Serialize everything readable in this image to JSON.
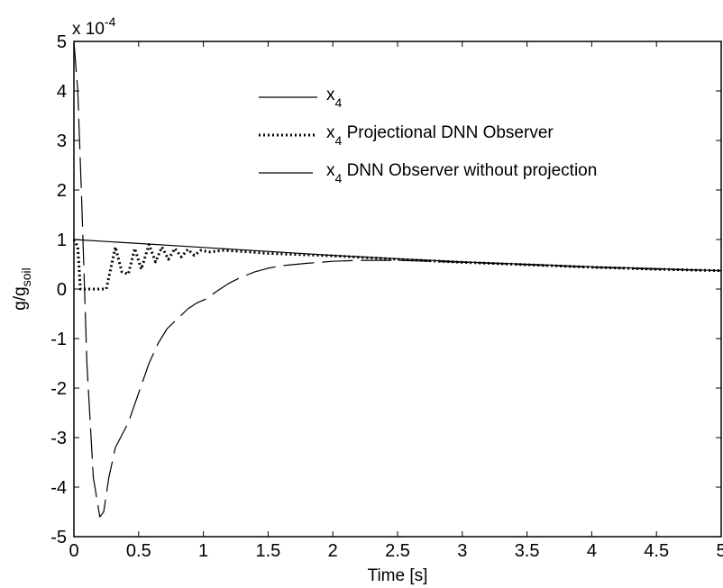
{
  "chart_data": {
    "type": "line",
    "title": "",
    "xlabel": "Time [s]",
    "ylabel_main": "g/g",
    "ylabel_sub": "soil",
    "xlim": [
      0,
      5
    ],
    "ylim": [
      -5,
      5
    ],
    "multiplier_base": "x 10",
    "multiplier_exp": "-4",
    "grid": false,
    "legend_position": "upper-middle",
    "xticks": [
      0,
      0.5,
      1,
      1.5,
      2,
      2.5,
      3,
      3.5,
      4,
      4.5,
      5
    ],
    "yticks": [
      -5,
      -4,
      -3,
      -2,
      -1,
      0,
      1,
      2,
      3,
      4,
      5
    ],
    "xtick_labels": [
      "0",
      "0.5",
      "1",
      "1.5",
      "2",
      "2.5",
      "3",
      "3.5",
      "4",
      "4.5",
      "5"
    ],
    "ytick_labels": [
      "-5",
      "-4",
      "-3",
      "-2",
      "-1",
      "0",
      "1",
      "2",
      "3",
      "4",
      "5"
    ],
    "series": [
      {
        "name": "x4",
        "label_main": "x",
        "label_sub": "4",
        "label_rest": "",
        "style": "solid",
        "x": [
          0,
          0.5,
          1,
          1.5,
          2,
          2.5,
          3,
          3.5,
          4,
          4.5,
          5
        ],
        "y": [
          1.0,
          0.92,
          0.84,
          0.76,
          0.68,
          0.61,
          0.55,
          0.5,
          0.45,
          0.41,
          0.37
        ]
      },
      {
        "name": "x4 Projectional DNN Observer",
        "label_main": "x",
        "label_sub": "4",
        "label_rest": " Projectional DNN Observer",
        "style": "dotted",
        "x": [
          0,
          0.03,
          0.05,
          0.25,
          0.32,
          0.37,
          0.42,
          0.47,
          0.52,
          0.58,
          0.63,
          0.68,
          0.73,
          0.78,
          0.83,
          0.88,
          0.93,
          0.98,
          1.05,
          1.15,
          1.3,
          1.5,
          2,
          2.5,
          3,
          3.5,
          4,
          4.5,
          5
        ],
        "y": [
          1.0,
          0.85,
          0.0,
          0.0,
          0.85,
          0.35,
          0.3,
          0.82,
          0.4,
          0.9,
          0.55,
          0.85,
          0.6,
          0.82,
          0.65,
          0.8,
          0.68,
          0.78,
          0.75,
          0.78,
          0.76,
          0.72,
          0.67,
          0.6,
          0.54,
          0.49,
          0.44,
          0.4,
          0.37
        ]
      },
      {
        "name": "x4 DNN Observer without projection",
        "label_main": "x",
        "label_sub": "4",
        "label_rest": " DNN Observer without projection",
        "style": "longdash",
        "x": [
          0,
          0.03,
          0.06,
          0.1,
          0.15,
          0.2,
          0.23,
          0.27,
          0.32,
          0.36,
          0.42,
          0.5,
          0.58,
          0.65,
          0.72,
          0.8,
          0.88,
          0.95,
          1.02,
          1.1,
          1.2,
          1.3,
          1.4,
          1.5,
          1.6,
          1.8,
          2.0,
          2.2,
          2.5,
          3,
          3.5,
          4,
          4.5,
          5
        ],
        "y": [
          5.0,
          4.0,
          1.8,
          -1.5,
          -3.8,
          -4.6,
          -4.5,
          -3.8,
          -3.2,
          -3.0,
          -2.7,
          -2.1,
          -1.5,
          -1.1,
          -0.8,
          -0.6,
          -0.4,
          -0.28,
          -0.2,
          -0.05,
          0.12,
          0.25,
          0.35,
          0.42,
          0.47,
          0.52,
          0.56,
          0.58,
          0.58,
          0.54,
          0.49,
          0.44,
          0.4,
          0.37
        ]
      }
    ]
  }
}
